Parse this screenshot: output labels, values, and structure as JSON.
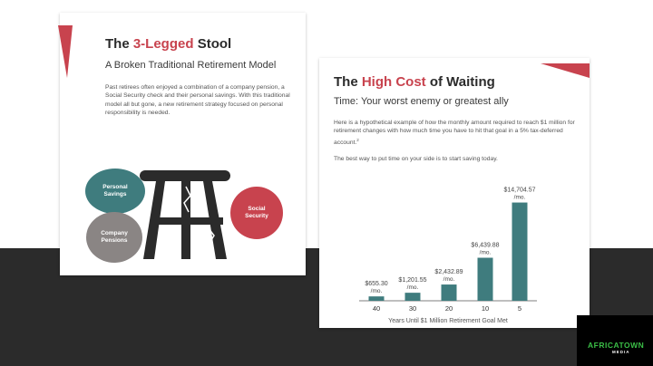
{
  "left_slide": {
    "title_part1": "The ",
    "title_accent": "3-Legged",
    "title_part2": " Stool",
    "subtitle": "A Broken Traditional Retirement Model",
    "body": "Past retirees often enjoyed a combination of a company pension, a Social Security check and their personal savings. With this traditional model all but gone, a new retirement strategy focused on personal responsibility is needed.",
    "bubbles": {
      "personal_savings": [
        "Personal",
        "Savings"
      ],
      "company_pensions": [
        "Company",
        "Pensions"
      ],
      "social_security": [
        "Social",
        "Security"
      ]
    }
  },
  "right_slide": {
    "title_part1": "The ",
    "title_accent": "High Cost",
    "title_part2": " of Waiting",
    "subtitle": "Time: Your worst enemy or greatest ally",
    "body": "Here is a hypothetical example of how the monthly amount required to reach $1 million for retirement changes with how much time you have to hit that goal in a 5% tax-deferred account.",
    "footnote": "2",
    "tagline": "The best way to put time on your side is to start saving today."
  },
  "colors": {
    "accent": "#c8434e",
    "bar": "#3f7c7e",
    "bubble_teal": "#3f7c7e",
    "bubble_gray": "#8a8584",
    "stool": "#2b2b2b",
    "background_band": "#2b2b2b"
  },
  "chart_data": {
    "type": "bar",
    "categories": [
      "40",
      "30",
      "20",
      "10",
      "5"
    ],
    "values": [
      655.3,
      1201.55,
      2432.89,
      6439.88,
      14704.57
    ],
    "data_labels": [
      "$655.30",
      "$1,201.55",
      "$2,432.89",
      "$6,439.88",
      "$14,704.57"
    ],
    "label_unit": "/mo.",
    "xlabel": "Years Until $1 Million Retirement Goal Met",
    "ylabel": "",
    "ylim": [
      0,
      16000
    ],
    "grid": false
  },
  "brand": {
    "name": "AFRICATOWN",
    "sub": "MEDIA"
  }
}
